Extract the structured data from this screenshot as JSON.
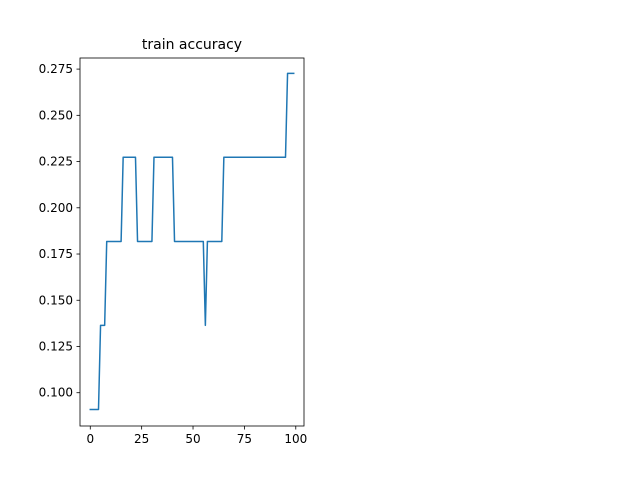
{
  "chart_data": {
    "type": "line",
    "title": "train accuracy",
    "xlabel": "",
    "ylabel": "",
    "xlim": [
      -5,
      104
    ],
    "ylim": [
      0.082,
      0.281
    ],
    "xticks": [
      0,
      25,
      50,
      75,
      100
    ],
    "xtick_labels": [
      "0",
      "25",
      "50",
      "75",
      "100"
    ],
    "yticks": [
      0.1,
      0.125,
      0.15,
      0.175,
      0.2,
      0.225,
      0.25,
      0.275
    ],
    "ytick_labels": [
      "0.100",
      "0.125",
      "0.150",
      "0.175",
      "0.200",
      "0.225",
      "0.250",
      "0.275"
    ],
    "grid": false,
    "legend": false,
    "line_color": "#1f77b4",
    "series": [
      {
        "x": [
          0,
          4,
          5,
          7,
          8,
          15,
          16,
          22,
          23,
          30,
          31,
          40,
          41,
          55,
          56,
          57,
          64,
          65,
          95,
          96,
          99
        ],
        "values": [
          0.0909,
          0.0909,
          0.1364,
          0.1364,
          0.1818,
          0.1818,
          0.2273,
          0.2273,
          0.1818,
          0.1818,
          0.2273,
          0.2273,
          0.1818,
          0.1818,
          0.1364,
          0.1818,
          0.1818,
          0.2273,
          0.2273,
          0.2727,
          0.2727
        ]
      }
    ]
  }
}
